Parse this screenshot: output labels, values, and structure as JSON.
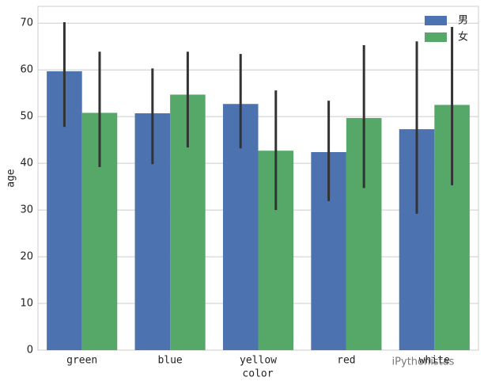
{
  "chart_data": {
    "type": "bar",
    "categories": [
      "green",
      "blue",
      "yellow",
      "red",
      "white"
    ],
    "x_label": "color",
    "y_label": "age",
    "series": [
      {
        "name": "男",
        "color": "#4c72b0",
        "values": [
          59.7,
          50.7,
          52.7,
          42.4,
          47.3
        ],
        "ci_low": [
          47.8,
          39.8,
          43.2,
          31.9,
          29.2
        ],
        "ci_high": [
          70.2,
          60.3,
          63.4,
          53.4,
          66.1
        ]
      },
      {
        "name": "女",
        "color": "#55a868",
        "values": [
          50.8,
          54.7,
          42.7,
          49.7,
          52.5
        ],
        "ci_low": [
          39.2,
          43.4,
          30.0,
          34.7,
          35.3
        ],
        "ci_high": [
          63.9,
          63.9,
          55.6,
          65.3,
          69.2
        ]
      }
    ],
    "ylim": [
      0,
      73.6
    ],
    "yticks": [
      0,
      10,
      20,
      30,
      40,
      50,
      60,
      70
    ],
    "grid": true,
    "legend": "upper right",
    "watermark": "iPythonistas"
  }
}
